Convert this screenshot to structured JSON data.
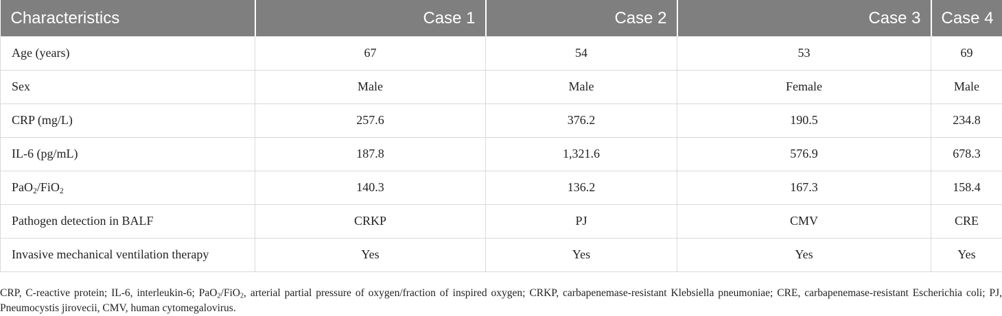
{
  "table": {
    "headers": [
      "Characteristics",
      "Case 1",
      "Case 2",
      "Case 3",
      "Case 4"
    ],
    "rows": [
      {
        "label": "Age (years)",
        "values": [
          "67",
          "54",
          "53",
          "69"
        ]
      },
      {
        "label": "Sex",
        "values": [
          "Male",
          "Male",
          "Female",
          "Male"
        ]
      },
      {
        "label": "CRP (mg/L)",
        "values": [
          "257.6",
          "376.2",
          "190.5",
          "234.8"
        ]
      },
      {
        "label": "IL-6 (pg/mL)",
        "values": [
          "187.8",
          "1,321.6",
          "576.9",
          "678.3"
        ]
      },
      {
        "label_parts": {
          "a": "PaO",
          "sub1": "2",
          "b": "/FiO",
          "sub2": "2"
        },
        "values": [
          "140.3",
          "136.2",
          "167.3",
          "158.4"
        ]
      },
      {
        "label": "Pathogen detection in BALF",
        "values": [
          "CRKP",
          "PJ",
          "CMV",
          "CRE"
        ]
      },
      {
        "label": "Invasive mechanical ventilation therapy",
        "values": [
          "Yes",
          "Yes",
          "Yes",
          "Yes"
        ]
      }
    ]
  },
  "footnote": {
    "part1": "CRP, C-reactive protein; IL-6, interleukin-6; PaO",
    "sub1": "2",
    "part2": "/FiO",
    "sub2": "2",
    "part3": ", arterial partial pressure of oxygen/fraction of inspired oxygen; CRKP, carbapenemase-resistant Klebsiella pneumoniae; CRE, carbapenemase-resistant Escherichia coli; PJ, Pneumocystis jirovecii, CMV, human cytomegalovirus."
  }
}
